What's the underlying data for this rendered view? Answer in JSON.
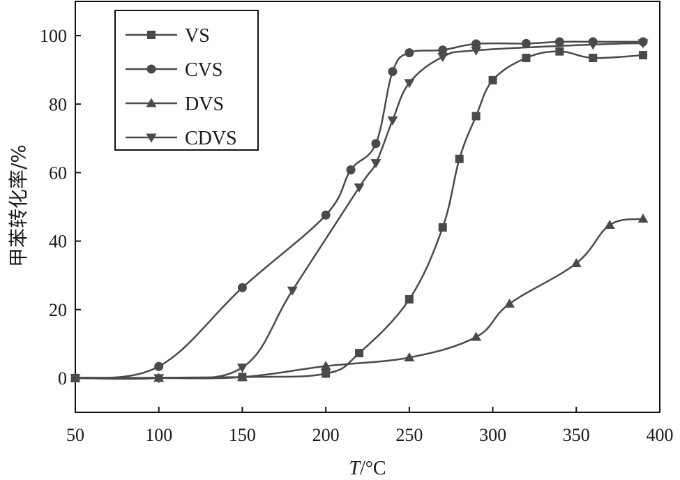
{
  "chart_data": {
    "type": "line",
    "title": "",
    "xlabel_italic": "T",
    "xlabel_rest": "/°C",
    "ylabel": "甲苯转化率/%",
    "xlim": [
      50,
      400
    ],
    "ylim": [
      -10,
      110
    ],
    "xticks": [
      50,
      100,
      150,
      200,
      250,
      300,
      350,
      400
    ],
    "yticks": [
      0,
      20,
      40,
      60,
      80,
      100
    ],
    "grid": false,
    "legend_position": "top-left",
    "line_color": "#4a4a4a",
    "series": [
      {
        "name": "VS",
        "marker": "square",
        "x": [
          50,
          150,
          200,
          220,
          250,
          270,
          280,
          290,
          300,
          320,
          340,
          360,
          390
        ],
        "y": [
          0,
          0.3,
          1.3,
          7.3,
          23,
          44,
          64,
          76.5,
          87,
          93.5,
          95.4,
          93.5,
          94.3
        ]
      },
      {
        "name": "CVS",
        "marker": "circle",
        "x": [
          50,
          100,
          150,
          200,
          215,
          230,
          240,
          250,
          270,
          290,
          320,
          340,
          360,
          390
        ],
        "y": [
          0,
          3.4,
          26.4,
          47.6,
          60.8,
          68.5,
          89.5,
          95,
          95.8,
          97.6,
          97.7,
          98.2,
          98.2,
          98.2
        ]
      },
      {
        "name": "DVS",
        "marker": "triangle-up",
        "x": [
          50,
          100,
          150,
          200,
          250,
          290,
          310,
          350,
          370,
          390
        ],
        "y": [
          0,
          0,
          0.3,
          3.5,
          6,
          12,
          21.7,
          33.5,
          44.7,
          46.5
        ]
      },
      {
        "name": "CDVS",
        "marker": "triangle-down",
        "x": [
          50,
          100,
          150,
          180,
          220,
          230,
          240,
          250,
          270,
          290,
          360,
          390
        ],
        "y": [
          0,
          0,
          3.1,
          25.6,
          55.7,
          62.8,
          75.3,
          86.2,
          93.8,
          95.7,
          97.4,
          97.8
        ]
      }
    ]
  }
}
